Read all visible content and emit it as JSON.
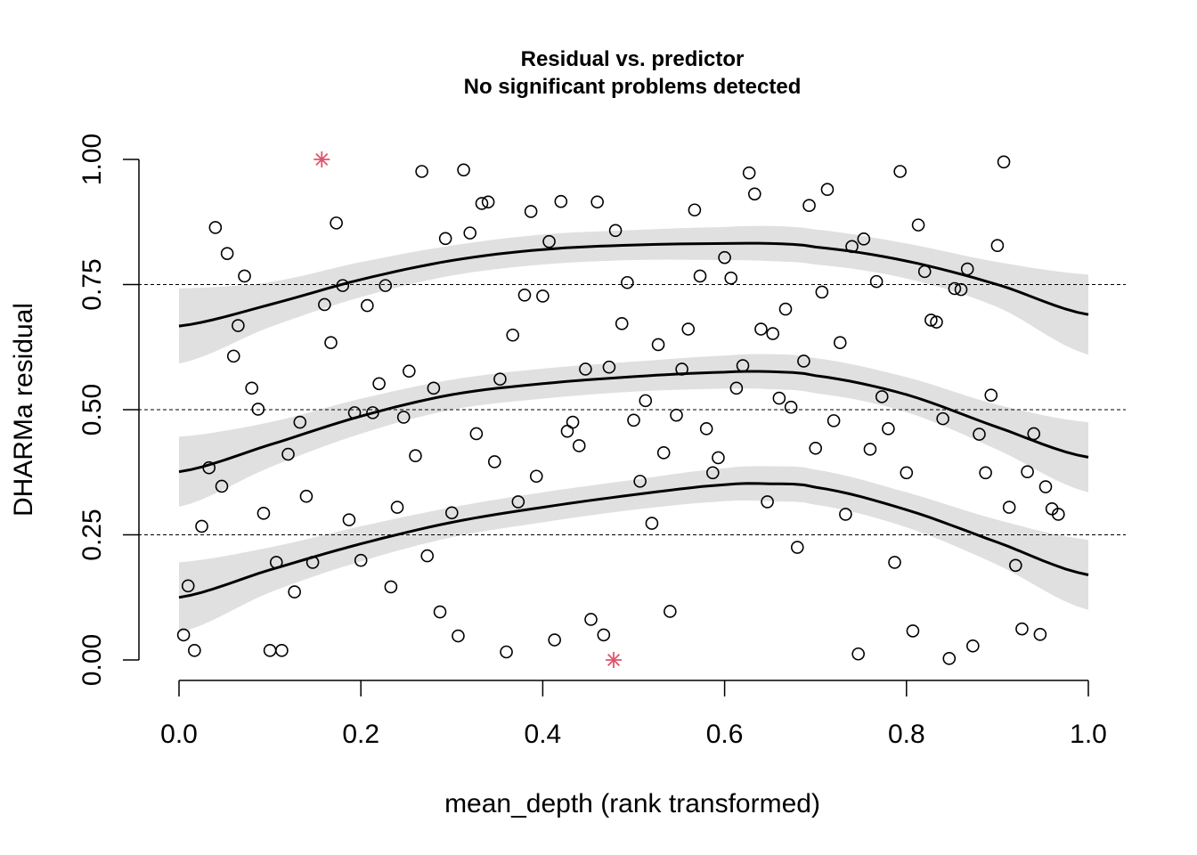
{
  "chart_data": {
    "type": "scatter",
    "title": "Residual vs. predictor",
    "subtitle": "No significant problems detected",
    "xlabel": "mean_depth (rank transformed)",
    "ylabel": "DHARMa residual",
    "xlim": [
      0,
      1
    ],
    "ylim": [
      0,
      1
    ],
    "x_ticks": [
      "0.0",
      "0.2",
      "0.4",
      "0.6",
      "0.8",
      "1.0"
    ],
    "y_ticks": [
      "0.00",
      "0.25",
      "0.50",
      "0.75",
      "1.00"
    ],
    "reference_lines": [
      0.25,
      0.5,
      0.75
    ],
    "colors": {
      "points": "#000000",
      "outliers": "#DF536B",
      "band": "#E0E0E0",
      "curve": "#000000"
    },
    "points": [
      [
        0.005,
        0.05
      ],
      [
        0.01,
        0.148
      ],
      [
        0.017,
        0.019
      ],
      [
        0.025,
        0.267
      ],
      [
        0.033,
        0.384
      ],
      [
        0.04,
        0.864
      ],
      [
        0.047,
        0.347
      ],
      [
        0.053,
        0.812
      ],
      [
        0.06,
        0.607
      ],
      [
        0.065,
        0.668
      ],
      [
        0.072,
        0.767
      ],
      [
        0.08,
        0.543
      ],
      [
        0.087,
        0.501
      ],
      [
        0.093,
        0.293
      ],
      [
        0.1,
        0.019
      ],
      [
        0.107,
        0.195
      ],
      [
        0.113,
        0.019
      ],
      [
        0.12,
        0.411
      ],
      [
        0.127,
        0.136
      ],
      [
        0.133,
        0.475
      ],
      [
        0.14,
        0.327
      ],
      [
        0.147,
        0.195
      ],
      [
        0.16,
        0.71
      ],
      [
        0.167,
        0.634
      ],
      [
        0.173,
        0.873
      ],
      [
        0.18,
        0.748
      ],
      [
        0.187,
        0.28
      ],
      [
        0.193,
        0.494
      ],
      [
        0.2,
        0.199
      ],
      [
        0.207,
        0.708
      ],
      [
        0.213,
        0.494
      ],
      [
        0.22,
        0.552
      ],
      [
        0.227,
        0.748
      ],
      [
        0.233,
        0.146
      ],
      [
        0.24,
        0.305
      ],
      [
        0.247,
        0.485
      ],
      [
        0.253,
        0.577
      ],
      [
        0.26,
        0.408
      ],
      [
        0.267,
        0.976
      ],
      [
        0.273,
        0.208
      ],
      [
        0.28,
        0.543
      ],
      [
        0.287,
        0.096
      ],
      [
        0.293,
        0.842
      ],
      [
        0.3,
        0.294
      ],
      [
        0.307,
        0.048
      ],
      [
        0.313,
        0.979
      ],
      [
        0.32,
        0.853
      ],
      [
        0.327,
        0.452
      ],
      [
        0.333,
        0.912
      ],
      [
        0.34,
        0.915
      ],
      [
        0.347,
        0.396
      ],
      [
        0.353,
        0.561
      ],
      [
        0.36,
        0.016
      ],
      [
        0.367,
        0.649
      ],
      [
        0.373,
        0.316
      ],
      [
        0.38,
        0.729
      ],
      [
        0.387,
        0.896
      ],
      [
        0.393,
        0.367
      ],
      [
        0.4,
        0.727
      ],
      [
        0.407,
        0.836
      ],
      [
        0.413,
        0.04
      ],
      [
        0.42,
        0.916
      ],
      [
        0.427,
        0.457
      ],
      [
        0.433,
        0.475
      ],
      [
        0.44,
        0.428
      ],
      [
        0.447,
        0.581
      ],
      [
        0.453,
        0.081
      ],
      [
        0.46,
        0.915
      ],
      [
        0.467,
        0.05
      ],
      [
        0.473,
        0.585
      ],
      [
        0.48,
        0.858
      ],
      [
        0.487,
        0.672
      ],
      [
        0.493,
        0.754
      ],
      [
        0.5,
        0.479
      ],
      [
        0.507,
        0.357
      ],
      [
        0.513,
        0.518
      ],
      [
        0.52,
        0.273
      ],
      [
        0.527,
        0.63
      ],
      [
        0.533,
        0.414
      ],
      [
        0.54,
        0.097
      ],
      [
        0.547,
        0.489
      ],
      [
        0.553,
        0.581
      ],
      [
        0.56,
        0.661
      ],
      [
        0.567,
        0.899
      ],
      [
        0.573,
        0.767
      ],
      [
        0.58,
        0.462
      ],
      [
        0.587,
        0.374
      ],
      [
        0.593,
        0.404
      ],
      [
        0.6,
        0.804
      ],
      [
        0.607,
        0.763
      ],
      [
        0.613,
        0.543
      ],
      [
        0.62,
        0.588
      ],
      [
        0.627,
        0.973
      ],
      [
        0.633,
        0.931
      ],
      [
        0.64,
        0.661
      ],
      [
        0.647,
        0.316
      ],
      [
        0.653,
        0.652
      ],
      [
        0.66,
        0.523
      ],
      [
        0.667,
        0.701
      ],
      [
        0.673,
        0.505
      ],
      [
        0.68,
        0.225
      ],
      [
        0.687,
        0.597
      ],
      [
        0.693,
        0.908
      ],
      [
        0.7,
        0.423
      ],
      [
        0.707,
        0.735
      ],
      [
        0.713,
        0.94
      ],
      [
        0.72,
        0.478
      ],
      [
        0.727,
        0.634
      ],
      [
        0.733,
        0.291
      ],
      [
        0.74,
        0.826
      ],
      [
        0.747,
        0.012
      ],
      [
        0.753,
        0.841
      ],
      [
        0.76,
        0.421
      ],
      [
        0.767,
        0.756
      ],
      [
        0.773,
        0.526
      ],
      [
        0.78,
        0.462
      ],
      [
        0.787,
        0.195
      ],
      [
        0.793,
        0.976
      ],
      [
        0.8,
        0.374
      ],
      [
        0.807,
        0.058
      ],
      [
        0.813,
        0.869
      ],
      [
        0.82,
        0.776
      ],
      [
        0.827,
        0.679
      ],
      [
        0.833,
        0.675
      ],
      [
        0.84,
        0.482
      ],
      [
        0.847,
        0.003
      ],
      [
        0.853,
        0.742
      ],
      [
        0.86,
        0.74
      ],
      [
        0.867,
        0.781
      ],
      [
        0.873,
        0.028
      ],
      [
        0.88,
        0.451
      ],
      [
        0.887,
        0.374
      ],
      [
        0.893,
        0.529
      ],
      [
        0.9,
        0.828
      ],
      [
        0.907,
        0.995
      ],
      [
        0.913,
        0.305
      ],
      [
        0.92,
        0.189
      ],
      [
        0.927,
        0.062
      ],
      [
        0.933,
        0.376
      ],
      [
        0.94,
        0.452
      ],
      [
        0.947,
        0.051
      ],
      [
        0.953,
        0.346
      ],
      [
        0.96,
        0.302
      ],
      [
        0.967,
        0.291
      ]
    ],
    "outliers": [
      [
        0.157,
        1.0
      ],
      [
        0.478,
        0.0
      ]
    ],
    "quantile_curves": [
      {
        "quantile": 0.25,
        "x": [
          0.0,
          0.1,
          0.2,
          0.3,
          0.4,
          0.5,
          0.6,
          0.65,
          0.7,
          0.8,
          0.9,
          1.0
        ],
        "y": [
          0.125,
          0.18,
          0.232,
          0.275,
          0.305,
          0.33,
          0.35,
          0.352,
          0.345,
          0.3,
          0.235,
          0.17
        ],
        "band_half": [
          0.07,
          0.045,
          0.035,
          0.03,
          0.03,
          0.03,
          0.033,
          0.035,
          0.035,
          0.035,
          0.045,
          0.07
        ]
      },
      {
        "quantile": 0.5,
        "x": [
          0.0,
          0.1,
          0.2,
          0.3,
          0.4,
          0.5,
          0.6,
          0.65,
          0.7,
          0.8,
          0.9,
          1.0
        ],
        "y": [
          0.376,
          0.43,
          0.487,
          0.53,
          0.552,
          0.566,
          0.575,
          0.576,
          0.568,
          0.53,
          0.465,
          0.405
        ],
        "band_half": [
          0.07,
          0.045,
          0.035,
          0.03,
          0.03,
          0.03,
          0.033,
          0.035,
          0.035,
          0.035,
          0.045,
          0.07
        ]
      },
      {
        "quantile": 0.75,
        "x": [
          0.0,
          0.1,
          0.2,
          0.3,
          0.4,
          0.5,
          0.6,
          0.65,
          0.7,
          0.8,
          0.9,
          1.0
        ],
        "y": [
          0.667,
          0.71,
          0.76,
          0.798,
          0.82,
          0.829,
          0.832,
          0.832,
          0.825,
          0.797,
          0.75,
          0.69
        ],
        "band_half": [
          0.075,
          0.045,
          0.035,
          0.03,
          0.03,
          0.03,
          0.033,
          0.035,
          0.035,
          0.035,
          0.045,
          0.08
        ]
      }
    ]
  }
}
